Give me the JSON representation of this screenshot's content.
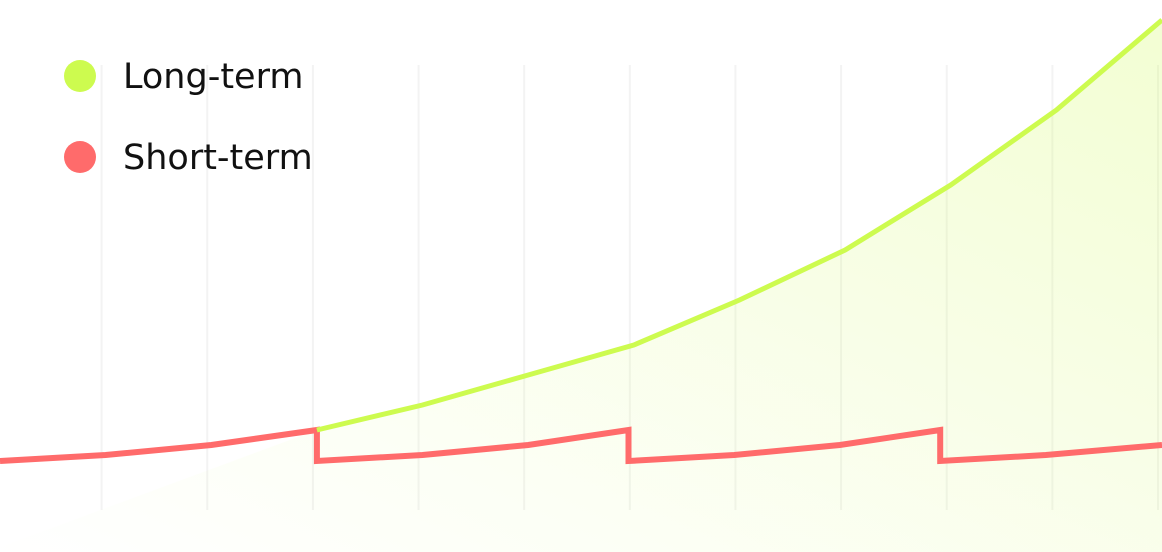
{
  "chart_data": {
    "type": "line",
    "xlim": [
      0,
      11
    ],
    "ylim": [
      0,
      10
    ],
    "xticks": [
      1,
      2,
      3,
      4,
      5,
      6,
      7,
      8,
      9,
      10,
      11
    ],
    "grid": true,
    "legend": "top-left",
    "series": [
      {
        "name": "Long-term",
        "color": "#cdfb4f",
        "x": [
          3,
          4,
          5,
          6,
          7,
          8,
          9,
          10,
          11
        ],
        "values": [
          1.6,
          2.1,
          2.7,
          3.3,
          4.2,
          5.2,
          6.5,
          8.0,
          9.8
        ]
      },
      {
        "name": "Short-term",
        "color": "#ff6b6b",
        "x": [
          0,
          1,
          2,
          3,
          3,
          4,
          5,
          5.95,
          5.95,
          6.95,
          7.95,
          8.9,
          8.9,
          9.9,
          11
        ],
        "values": [
          0.98,
          1.1,
          1.3,
          1.6,
          0.98,
          1.1,
          1.3,
          1.6,
          0.98,
          1.1,
          1.3,
          1.6,
          0.98,
          1.1,
          1.3
        ]
      }
    ]
  }
}
